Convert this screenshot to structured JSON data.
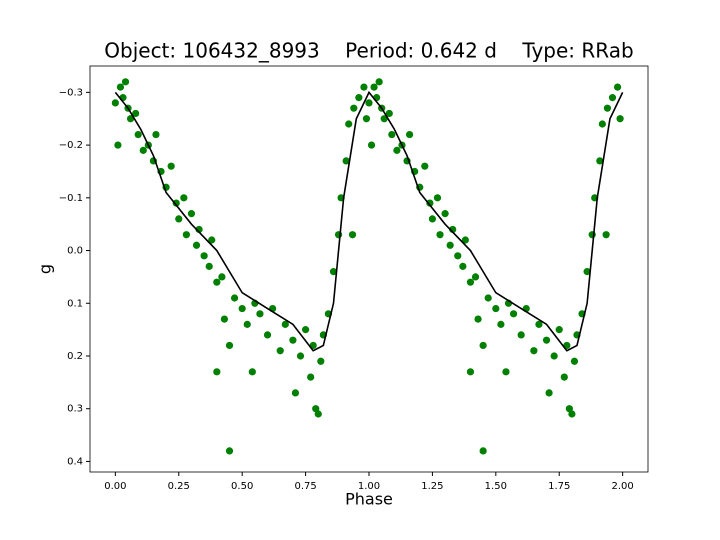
{
  "chart_data": {
    "type": "scatter",
    "title": "Object: 106432_8993    Period: 0.642 d    Type: RRab",
    "x_label": "Phase",
    "y_label": "g",
    "xlim": [
      -0.1,
      2.1
    ],
    "ylim": [
      -0.35,
      0.42
    ],
    "y_inverted": true,
    "xticks": [
      {
        "value": 0,
        "label": "0.00"
      },
      {
        "value": 0.25,
        "label": "0.25"
      },
      {
        "value": 0.5,
        "label": "0.50"
      },
      {
        "value": 0.75,
        "label": "0.75"
      },
      {
        "value": 1,
        "label": "1.00"
      },
      {
        "value": 1.25,
        "label": "1.25"
      },
      {
        "value": 1.5,
        "label": "1.50"
      },
      {
        "value": 1.75,
        "label": "1.75"
      },
      {
        "value": 2,
        "label": "2.00"
      }
    ],
    "yticks": [
      {
        "value": -0.3,
        "label": "−0.3"
      },
      {
        "value": -0.2,
        "label": "−0.2"
      },
      {
        "value": -0.1,
        "label": "−0.1"
      },
      {
        "value": 0,
        "label": "0.0"
      },
      0.1,
      0.2,
      0.3,
      0.4
    ],
    "series": [
      {
        "type": "scatter",
        "color": "#008000",
        "x": [
          0.0,
          0.01,
          0.02,
          0.03,
          0.04,
          0.05,
          0.06,
          0.08,
          0.09,
          0.11,
          0.13,
          0.15,
          0.16,
          0.18,
          0.2,
          0.22,
          0.24,
          0.25,
          0.27,
          0.28,
          0.3,
          0.32,
          0.33,
          0.35,
          0.37,
          0.38,
          0.4,
          0.4,
          0.42,
          0.43,
          0.45,
          0.45,
          0.47,
          0.5,
          0.52,
          0.54,
          0.55,
          0.57,
          0.6,
          0.62,
          0.65,
          0.67,
          0.7,
          0.71,
          0.73,
          0.75,
          0.77,
          0.78,
          0.79,
          0.8,
          0.81,
          0.82,
          0.84,
          0.86,
          0.88,
          0.89,
          0.91,
          0.92,
          0.935,
          0.94,
          0.96,
          0.98,
          0.99,
          1.0,
          1.01,
          1.02,
          1.03,
          1.04,
          1.05,
          1.06,
          1.08,
          1.09,
          1.11,
          1.13,
          1.15,
          1.16,
          1.18,
          1.2,
          1.22,
          1.24,
          1.25,
          1.27,
          1.28,
          1.3,
          1.32,
          1.33,
          1.35,
          1.37,
          1.38,
          1.4,
          1.4,
          1.42,
          1.43,
          1.45,
          1.45,
          1.47,
          1.5,
          1.52,
          1.54,
          1.55,
          1.57,
          1.6,
          1.62,
          1.65,
          1.67,
          1.7,
          1.71,
          1.73,
          1.75,
          1.77,
          1.78,
          1.79,
          1.8,
          1.81,
          1.82,
          1.84,
          1.86,
          1.88,
          1.89,
          1.91,
          1.92,
          1.935,
          1.94,
          1.96,
          1.98,
          1.99
        ],
        "values": [
          -0.28,
          -0.2,
          -0.31,
          -0.29,
          -0.32,
          -0.27,
          -0.25,
          -0.26,
          -0.22,
          -0.19,
          -0.2,
          -0.17,
          -0.22,
          -0.15,
          -0.12,
          -0.16,
          -0.09,
          -0.06,
          -0.1,
          -0.03,
          -0.07,
          -0.01,
          -0.04,
          0.01,
          0.03,
          -0.02,
          0.06,
          0.23,
          0.05,
          0.13,
          0.18,
          0.38,
          0.09,
          0.11,
          0.14,
          0.23,
          0.1,
          0.12,
          0.16,
          0.11,
          0.19,
          0.14,
          0.17,
          0.27,
          0.2,
          0.15,
          0.24,
          0.18,
          0.3,
          0.31,
          0.21,
          0.16,
          0.12,
          0.04,
          -0.03,
          -0.1,
          -0.17,
          -0.24,
          -0.03,
          -0.27,
          -0.29,
          -0.31,
          -0.25,
          -0.28,
          -0.2,
          -0.31,
          -0.29,
          -0.32,
          -0.27,
          -0.25,
          -0.26,
          -0.22,
          -0.19,
          -0.2,
          -0.17,
          -0.22,
          -0.15,
          -0.12,
          -0.16,
          -0.09,
          -0.06,
          -0.1,
          -0.03,
          -0.07,
          -0.01,
          -0.04,
          0.01,
          0.03,
          -0.02,
          0.06,
          0.23,
          0.05,
          0.13,
          0.18,
          0.38,
          0.09,
          0.11,
          0.14,
          0.23,
          0.1,
          0.12,
          0.16,
          0.11,
          0.19,
          0.14,
          0.17,
          0.27,
          0.2,
          0.15,
          0.24,
          0.18,
          0.3,
          0.31,
          0.21,
          0.16,
          0.12,
          0.04,
          -0.03,
          -0.1,
          -0.17,
          -0.24,
          -0.03,
          -0.27,
          -0.29,
          -0.31,
          -0.25
        ]
      },
      {
        "type": "line",
        "color": "#000000",
        "x": [
          0.0,
          0.05,
          0.1,
          0.15,
          0.2,
          0.3,
          0.4,
          0.5,
          0.6,
          0.7,
          0.78,
          0.82,
          0.86,
          0.9,
          0.95,
          1.0,
          1.05,
          1.1,
          1.15,
          1.2,
          1.3,
          1.4,
          1.5,
          1.6,
          1.7,
          1.78,
          1.82,
          1.86,
          1.9,
          1.95,
          2.0
        ],
        "values": [
          -0.3,
          -0.27,
          -0.23,
          -0.18,
          -0.11,
          -0.05,
          0.0,
          0.08,
          0.11,
          0.14,
          0.19,
          0.18,
          0.1,
          -0.1,
          -0.25,
          -0.3,
          -0.27,
          -0.23,
          -0.18,
          -0.11,
          -0.05,
          0.0,
          0.08,
          0.11,
          0.14,
          0.19,
          0.18,
          0.1,
          -0.1,
          -0.25,
          -0.3
        ]
      }
    ]
  }
}
